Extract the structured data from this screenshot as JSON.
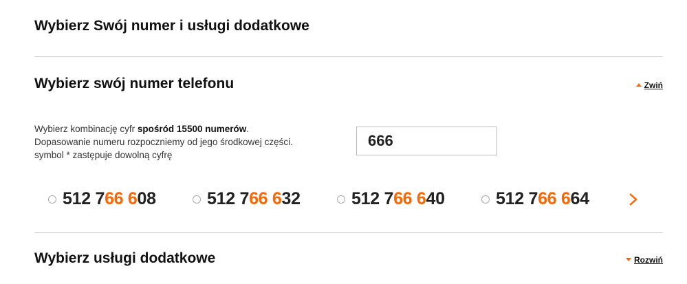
{
  "page": {
    "title": "Wybierz Swój numer i usługi dodatkowe"
  },
  "phone_section": {
    "title": "Wybierz swój numer telefonu",
    "toggle_label": "Zwiń",
    "toggle_icon": "triangle-up-icon",
    "desc_line1_pre": "Wybierz kombinację cyfr ",
    "desc_line1_bold": "spośród 15500 numerów",
    "desc_line1_post": ".",
    "desc_line2": "Dopasowanie numeru rozpoczniemy od jego środkowej części.",
    "desc_line3": "symbol * zastępuje dowolną cyfrę",
    "search_value": "666",
    "numbers": [
      {
        "pre": "512 7",
        "match": "66 6",
        "post": "08",
        "selected": false
      },
      {
        "pre": "512 7",
        "match": "66 6",
        "post": "32",
        "selected": false
      },
      {
        "pre": "512 7",
        "match": "66 6",
        "post": "40",
        "selected": false
      },
      {
        "pre": "512 7",
        "match": "66 6",
        "post": "64",
        "selected": false
      }
    ],
    "next_icon": "chevron-right-icon"
  },
  "services_section": {
    "title": "Wybierz usługi dodatkowe",
    "toggle_label": "Rozwiń",
    "toggle_icon": "triangle-down-icon"
  },
  "colors": {
    "accent": "#ff6600",
    "text": "#222222",
    "divider": "#cccccc"
  }
}
